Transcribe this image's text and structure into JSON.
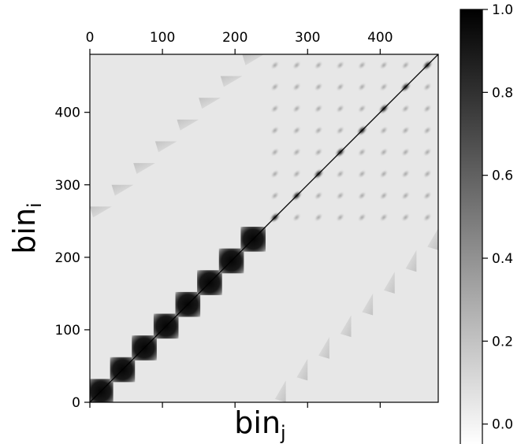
{
  "chart_data": {
    "type": "heatmap",
    "title": "",
    "xlabel": "bin",
    "xlabel_subscript": "j",
    "ylabel": "bin",
    "ylabel_subscript": "i",
    "x_ticks": [
      0,
      100,
      200,
      300,
      400
    ],
    "y_ticks": [
      0,
      100,
      200,
      300,
      400
    ],
    "xlim": [
      0,
      480
    ],
    "ylim": [
      0,
      480
    ],
    "colormap": "gray_r",
    "colorbar": {
      "ticks": [
        0.0,
        0.2,
        0.4,
        0.6,
        0.8,
        1.0
      ],
      "tick_labels": [
        "0.0",
        "0.2",
        "0.4",
        "0.6",
        "0.8",
        "1.0"
      ],
      "range": [
        -0.05,
        1.0
      ]
    },
    "background_value": 0.05,
    "diagonal_blocks": [
      {
        "start": 0,
        "end": 30
      },
      {
        "start": 30,
        "end": 60
      },
      {
        "start": 60,
        "end": 90
      },
      {
        "start": 90,
        "end": 120
      },
      {
        "start": 120,
        "end": 150
      },
      {
        "start": 150,
        "end": 180
      },
      {
        "start": 180,
        "end": 210
      },
      {
        "start": 210,
        "end": 240
      }
    ],
    "upper_off_diagonal_wedges": [
      {
        "x": 0,
        "y": 270
      },
      {
        "x": 30,
        "y": 300
      },
      {
        "x": 60,
        "y": 330
      },
      {
        "x": 90,
        "y": 360
      },
      {
        "x": 120,
        "y": 390
      },
      {
        "x": 150,
        "y": 420
      },
      {
        "x": 180,
        "y": 450
      },
      {
        "x": 210,
        "y": 480
      }
    ],
    "lower_off_diagonal_wedges": [
      {
        "x": 270,
        "y": 0
      },
      {
        "x": 300,
        "y": 30
      },
      {
        "x": 330,
        "y": 60
      },
      {
        "x": 360,
        "y": 90
      },
      {
        "x": 390,
        "y": 120
      },
      {
        "x": 420,
        "y": 150
      },
      {
        "x": 450,
        "y": 180
      },
      {
        "x": 480,
        "y": 210
      }
    ],
    "fine_block_size": 30,
    "fine_region": [
      240,
      480
    ],
    "fine_diagonal_peak": 0.95,
    "fine_offdiag_peak": 0.3,
    "diagonal_line_value": 1.0
  }
}
